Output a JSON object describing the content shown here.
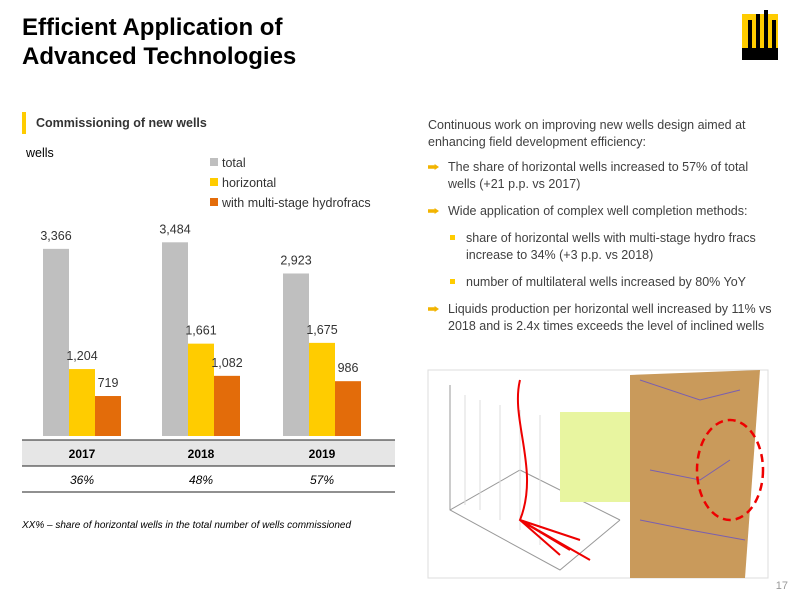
{
  "title_lines": [
    "Efficient Application of",
    "Advanced Technologies"
  ],
  "chart_data": {
    "type": "bar",
    "title": "Commissioning of new wells",
    "y_label": "wells",
    "categories": [
      "2017",
      "2018",
      "2019"
    ],
    "series": [
      {
        "name": "total",
        "color": "#bfbfbf",
        "values": [
          3366,
          3484,
          2923
        ],
        "value_labels": [
          "3,366",
          "3,484",
          "2,923"
        ]
      },
      {
        "name": "horizontal",
        "color": "#ffcc00",
        "values": [
          1204,
          1661,
          1675
        ],
        "value_labels": [
          "1,204",
          "1,661",
          "1,675"
        ]
      },
      {
        "name": "with multi-stage hydrofracs",
        "color": "#e36c0a",
        "values": [
          719,
          1082,
          986
        ],
        "value_labels": [
          "719",
          "1,082",
          "986"
        ]
      }
    ],
    "share_labels": [
      "36%",
      "48%",
      "57%"
    ],
    "footnote": "XX% – share of horizontal wells in the total number of wells commissioned"
  },
  "intro": "Continuous work on improving new wells design aimed at enhancing field development efficiency:",
  "bullets": [
    {
      "text": "The share of horizontal wells increased to 57% of total wells (+21 p.p. vs 2017)"
    },
    {
      "text": "Wide application of complex well completion methods:",
      "sub": [
        "share of horizontal wells with multi-stage hydro fracs increase to 34% (+3 p.p. vs 2018)",
        "number of multilateral wells increased by 80% YoY"
      ]
    },
    {
      "text": "Liquids production per horizontal well increased by 11%  vs 2018 and is 2.4x times exceeds the level of inclined wells"
    }
  ],
  "page_number": "17"
}
